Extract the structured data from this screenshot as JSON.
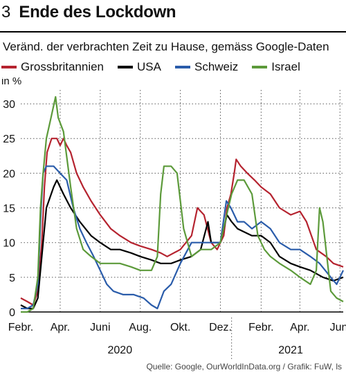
{
  "header": {
    "figure_number": "3",
    "title": "Ende des Lockdown",
    "subtitle": "Veränd. der verbrachten Zeit zu Hause, gemäss Google-Daten"
  },
  "source": "Quelle: Google, OurWorldInData.org / Grafik: FuW, ls",
  "colors": {
    "grossbritannien": "#b5232f",
    "usa": "#000000",
    "schweiz": "#2a5caa",
    "israel": "#5c9a3a"
  },
  "chart_data": {
    "type": "line",
    "ylabel": "in %",
    "ylim": [
      0,
      32
    ],
    "yticks": [
      0,
      5,
      10,
      15,
      20,
      25,
      30
    ],
    "xlim": [
      "2020-02-15",
      "2021-06-20"
    ],
    "xtick_labels": [
      {
        "label": "Febr.",
        "date": "2020-02-15"
      },
      {
        "label": "Apr.",
        "date": "2020-04-15"
      },
      {
        "label": "Juni",
        "date": "2020-06-15"
      },
      {
        "label": "Aug.",
        "date": "2020-08-15"
      },
      {
        "label": "Okt.",
        "date": "2020-10-15"
      },
      {
        "label": "Dez.",
        "date": "2020-12-15"
      },
      {
        "label": "Febr.",
        "date": "2021-02-15"
      },
      {
        "label": "Apr.",
        "date": "2021-04-15"
      },
      {
        "label": "Juni",
        "date": "2021-06-15"
      }
    ],
    "year_labels": [
      {
        "label": "2020",
        "date": "2020-07-15"
      },
      {
        "label": "2021",
        "date": "2021-04-01"
      }
    ],
    "year_divider": "2021-01-01",
    "grid": "dotted",
    "legend_position": "top",
    "series": [
      {
        "name": "Grossbritannien",
        "color_key": "grossbritannien",
        "points": [
          [
            "2020-02-15",
            2
          ],
          [
            "2020-02-25",
            1.5
          ],
          [
            "2020-03-05",
            1
          ],
          [
            "2020-03-12",
            3
          ],
          [
            "2020-03-18",
            10
          ],
          [
            "2020-03-22",
            18
          ],
          [
            "2020-03-26",
            23
          ],
          [
            "2020-04-02",
            25
          ],
          [
            "2020-04-10",
            25
          ],
          [
            "2020-04-15",
            24
          ],
          [
            "2020-04-20",
            25
          ],
          [
            "2020-04-25",
            24
          ],
          [
            "2020-05-01",
            23
          ],
          [
            "2020-05-10",
            20
          ],
          [
            "2020-05-20",
            18
          ],
          [
            "2020-06-01",
            16
          ],
          [
            "2020-06-15",
            14
          ],
          [
            "2020-07-01",
            12
          ],
          [
            "2020-07-15",
            11
          ],
          [
            "2020-08-01",
            10
          ],
          [
            "2020-08-15",
            9.5
          ],
          [
            "2020-09-01",
            9
          ],
          [
            "2020-09-15",
            8.5
          ],
          [
            "2020-09-25",
            8
          ],
          [
            "2020-10-15",
            9
          ],
          [
            "2020-11-01",
            11
          ],
          [
            "2020-11-10",
            15
          ],
          [
            "2020-11-20",
            14
          ],
          [
            "2020-12-01",
            10
          ],
          [
            "2020-12-10",
            9
          ],
          [
            "2020-12-20",
            11
          ],
          [
            "2020-12-25",
            15
          ],
          [
            "2020-12-31",
            17
          ],
          [
            "2021-01-05",
            20
          ],
          [
            "2021-01-08",
            22
          ],
          [
            "2021-01-15",
            21
          ],
          [
            "2021-01-25",
            20
          ],
          [
            "2021-02-05",
            19
          ],
          [
            "2021-02-15",
            18
          ],
          [
            "2021-03-01",
            17
          ],
          [
            "2021-03-15",
            15
          ],
          [
            "2021-04-01",
            14
          ],
          [
            "2021-04-15",
            14.5
          ],
          [
            "2021-04-25",
            13
          ],
          [
            "2021-05-10",
            9
          ],
          [
            "2021-05-25",
            8
          ],
          [
            "2021-06-05",
            7
          ],
          [
            "2021-06-20",
            6.5
          ]
        ]
      },
      {
        "name": "USA",
        "color_key": "usa",
        "points": [
          [
            "2020-02-15",
            1
          ],
          [
            "2020-02-25",
            0.5
          ],
          [
            "2020-03-05",
            0.5
          ],
          [
            "2020-03-12",
            2
          ],
          [
            "2020-03-18",
            8
          ],
          [
            "2020-03-25",
            15
          ],
          [
            "2020-04-05",
            18
          ],
          [
            "2020-04-10",
            19
          ],
          [
            "2020-04-20",
            17
          ],
          [
            "2020-05-01",
            15
          ],
          [
            "2020-05-15",
            13
          ],
          [
            "2020-06-01",
            11
          ],
          [
            "2020-06-15",
            10
          ],
          [
            "2020-07-01",
            9
          ],
          [
            "2020-07-15",
            9
          ],
          [
            "2020-08-01",
            8.5
          ],
          [
            "2020-08-15",
            8
          ],
          [
            "2020-09-01",
            7.5
          ],
          [
            "2020-09-15",
            7
          ],
          [
            "2020-10-01",
            7
          ],
          [
            "2020-10-15",
            7.5
          ],
          [
            "2020-11-01",
            8
          ],
          [
            "2020-11-15",
            9
          ],
          [
            "2020-11-26",
            13
          ],
          [
            "2020-12-01",
            10
          ],
          [
            "2020-12-15",
            10
          ],
          [
            "2020-12-25",
            14
          ],
          [
            "2021-01-01",
            13
          ],
          [
            "2021-01-10",
            12
          ],
          [
            "2021-02-01",
            11
          ],
          [
            "2021-02-15",
            11
          ],
          [
            "2021-03-01",
            10
          ],
          [
            "2021-03-15",
            8
          ],
          [
            "2021-04-01",
            7
          ],
          [
            "2021-04-15",
            6.5
          ],
          [
            "2021-05-01",
            6
          ],
          [
            "2021-05-20",
            5
          ],
          [
            "2021-06-05",
            4.5
          ],
          [
            "2021-06-20",
            5
          ]
        ]
      },
      {
        "name": "Schweiz",
        "color_key": "schweiz",
        "points": [
          [
            "2020-02-15",
            0.5
          ],
          [
            "2020-02-25",
            0.5
          ],
          [
            "2020-03-05",
            1
          ],
          [
            "2020-03-12",
            4
          ],
          [
            "2020-03-17",
            15
          ],
          [
            "2020-03-20",
            20
          ],
          [
            "2020-03-25",
            21
          ],
          [
            "2020-04-05",
            21
          ],
          [
            "2020-04-15",
            20
          ],
          [
            "2020-04-25",
            19
          ],
          [
            "2020-05-05",
            15
          ],
          [
            "2020-05-15",
            12
          ],
          [
            "2020-05-25",
            10
          ],
          [
            "2020-06-05",
            8
          ],
          [
            "2020-06-15",
            6
          ],
          [
            "2020-06-25",
            4
          ],
          [
            "2020-07-05",
            3
          ],
          [
            "2020-07-20",
            2.5
          ],
          [
            "2020-08-05",
            2.5
          ],
          [
            "2020-08-20",
            2
          ],
          [
            "2020-09-01",
            1
          ],
          [
            "2020-09-10",
            0.5
          ],
          [
            "2020-09-20",
            3
          ],
          [
            "2020-10-01",
            4
          ],
          [
            "2020-10-15",
            7
          ],
          [
            "2020-11-01",
            10
          ],
          [
            "2020-11-15",
            10
          ],
          [
            "2020-12-01",
            10
          ],
          [
            "2020-12-15",
            10
          ],
          [
            "2020-12-24",
            16
          ],
          [
            "2020-12-31",
            15
          ],
          [
            "2021-01-10",
            13
          ],
          [
            "2021-01-20",
            13
          ],
          [
            "2021-02-01",
            12
          ],
          [
            "2021-02-15",
            13
          ],
          [
            "2021-03-01",
            12
          ],
          [
            "2021-03-15",
            10
          ],
          [
            "2021-04-01",
            9
          ],
          [
            "2021-04-15",
            9
          ],
          [
            "2021-05-01",
            8
          ],
          [
            "2021-05-15",
            7
          ],
          [
            "2021-06-01",
            5
          ],
          [
            "2021-06-10",
            4
          ],
          [
            "2021-06-20",
            6
          ]
        ]
      },
      {
        "name": "Israel",
        "color_key": "israel",
        "points": [
          [
            "2020-02-15",
            0
          ],
          [
            "2020-02-25",
            0
          ],
          [
            "2020-03-05",
            0.5
          ],
          [
            "2020-03-12",
            5
          ],
          [
            "2020-03-16",
            15
          ],
          [
            "2020-03-20",
            20
          ],
          [
            "2020-03-25",
            25
          ],
          [
            "2020-04-01",
            28
          ],
          [
            "2020-04-08",
            31
          ],
          [
            "2020-04-12",
            28
          ],
          [
            "2020-04-20",
            26
          ],
          [
            "2020-05-01",
            18
          ],
          [
            "2020-05-10",
            12
          ],
          [
            "2020-05-20",
            9
          ],
          [
            "2020-06-01",
            8
          ],
          [
            "2020-06-15",
            7
          ],
          [
            "2020-07-01",
            7
          ],
          [
            "2020-07-15",
            7
          ],
          [
            "2020-08-01",
            6.5
          ],
          [
            "2020-08-15",
            6
          ],
          [
            "2020-09-01",
            6
          ],
          [
            "2020-09-10",
            8
          ],
          [
            "2020-09-15",
            17
          ],
          [
            "2020-09-20",
            21
          ],
          [
            "2020-10-01",
            21
          ],
          [
            "2020-10-10",
            20
          ],
          [
            "2020-10-20",
            12
          ],
          [
            "2020-11-01",
            8
          ],
          [
            "2020-11-15",
            9
          ],
          [
            "2020-12-01",
            9
          ],
          [
            "2020-12-15",
            10
          ],
          [
            "2020-12-27",
            15
          ],
          [
            "2021-01-01",
            17
          ],
          [
            "2021-01-10",
            19
          ],
          [
            "2021-01-20",
            19
          ],
          [
            "2021-02-01",
            17
          ],
          [
            "2021-02-10",
            11
          ],
          [
            "2021-02-20",
            9
          ],
          [
            "2021-03-01",
            8
          ],
          [
            "2021-03-15",
            7
          ],
          [
            "2021-04-01",
            6
          ],
          [
            "2021-04-15",
            5
          ],
          [
            "2021-05-01",
            4
          ],
          [
            "2021-05-10",
            6
          ],
          [
            "2021-05-15",
            15
          ],
          [
            "2021-05-20",
            13
          ],
          [
            "2021-06-01",
            3
          ],
          [
            "2021-06-10",
            2
          ],
          [
            "2021-06-20",
            1.5
          ]
        ]
      }
    ]
  }
}
